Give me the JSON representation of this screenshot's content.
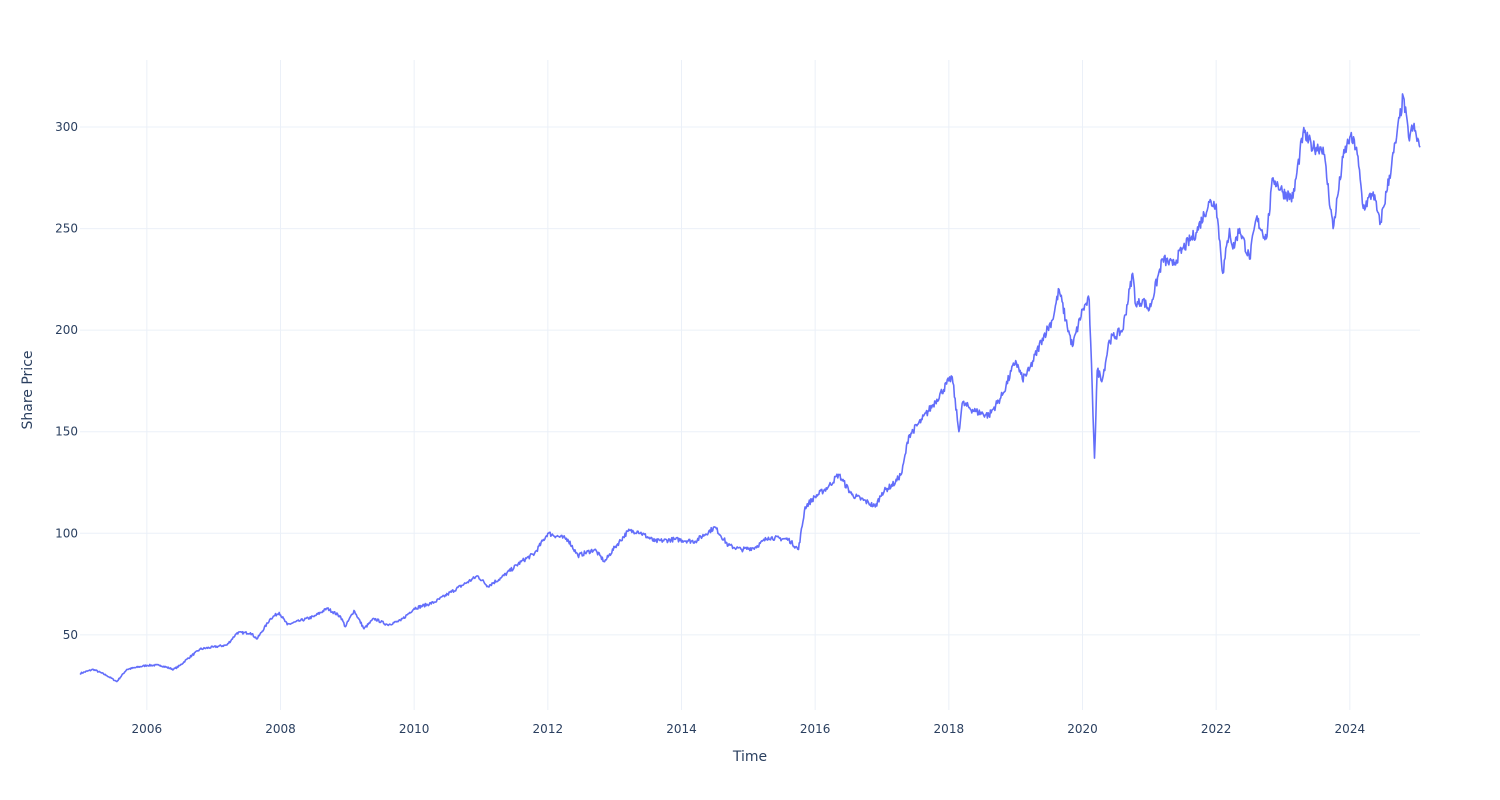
{
  "chart_data": {
    "type": "line",
    "title": "",
    "xlabel": "Time",
    "ylabel": "Share Price",
    "xlim": [
      2005.0,
      2025.05
    ],
    "ylim": [
      13,
      333
    ],
    "x_ticks": [
      2006,
      2008,
      2010,
      2012,
      2014,
      2016,
      2018,
      2020,
      2022,
      2024
    ],
    "y_ticks": [
      50,
      100,
      150,
      200,
      250,
      300
    ],
    "grid": true,
    "legend": "none",
    "line_color": "#636efa",
    "series": [
      {
        "x": [
          2005.0,
          2005.2,
          2005.4,
          2005.55,
          2005.7,
          2006.0,
          2006.2,
          2006.4,
          2006.5,
          2006.6,
          2006.8,
          2007.0,
          2007.2,
          2007.35,
          2007.55,
          2007.65,
          2007.85,
          2007.98,
          2008.1,
          2008.3,
          2008.5,
          2008.7,
          2008.9,
          2008.97,
          2009.1,
          2009.25,
          2009.4,
          2009.6,
          2009.8,
          2010.0,
          2010.3,
          2010.5,
          2010.8,
          2010.95,
          2011.1,
          2011.3,
          2011.6,
          2011.8,
          2012.0,
          2012.3,
          2012.45,
          2012.7,
          2012.85,
          2013.0,
          2013.2,
          2013.35,
          2013.6,
          2013.9,
          2014.2,
          2014.5,
          2014.7,
          2014.9,
          2015.1,
          2015.3,
          2015.6,
          2015.75,
          2015.85,
          2016.0,
          2016.2,
          2016.35,
          2016.55,
          2016.8,
          2016.9,
          2017.0,
          2017.2,
          2017.3,
          2017.4,
          2017.6,
          2017.8,
          2018.0,
          2018.05,
          2018.15,
          2018.2,
          2018.4,
          2018.6,
          2018.8,
          2019.0,
          2019.1,
          2019.2,
          2019.4,
          2019.55,
          2019.65,
          2019.75,
          2019.85,
          2020.0,
          2020.1,
          2020.18,
          2020.22,
          2020.3,
          2020.4,
          2020.6,
          2020.75,
          2020.8,
          2020.9,
          2021.0,
          2021.2,
          2021.35,
          2021.5,
          2021.7,
          2021.9,
          2022.0,
          2022.1,
          2022.2,
          2022.25,
          2022.35,
          2022.5,
          2022.6,
          2022.75,
          2022.85,
          2023.0,
          2023.15,
          2023.3,
          2023.45,
          2023.6,
          2023.75,
          2023.9,
          2024.0,
          2024.1,
          2024.2,
          2024.35,
          2024.45,
          2024.55,
          2024.7,
          2024.8,
          2024.88,
          2024.95,
          2025.05
        ],
        "y": [
          31,
          33,
          30,
          27,
          33,
          35,
          35,
          33,
          35,
          38,
          43,
          44,
          45,
          51,
          51,
          48,
          58,
          61,
          55,
          57,
          59,
          63,
          59,
          54,
          62,
          53,
          58,
          55,
          57,
          63,
          66,
          70,
          76,
          79,
          74,
          78,
          86,
          90,
          100,
          97,
          89,
          92,
          86,
          93,
          101,
          101,
          96,
          97,
          96,
          103,
          94,
          92,
          93,
          98,
          97,
          92,
          113,
          118,
          123,
          129,
          119,
          115,
          113,
          120,
          125,
          130,
          148,
          156,
          165,
          175,
          177,
          150,
          164,
          160,
          158,
          168,
          185,
          176,
          180,
          196,
          205,
          220,
          205,
          192,
          210,
          215,
          137,
          180,
          176,
          195,
          200,
          228,
          212,
          215,
          210,
          235,
          232,
          240,
          248,
          263,
          262,
          228,
          250,
          240,
          250,
          235,
          255,
          245,
          275,
          268,
          265,
          297,
          290,
          290,
          250,
          285,
          295,
          290,
          260,
          268,
          252,
          268,
          295,
          315,
          295,
          300,
          290
        ]
      }
    ]
  }
}
